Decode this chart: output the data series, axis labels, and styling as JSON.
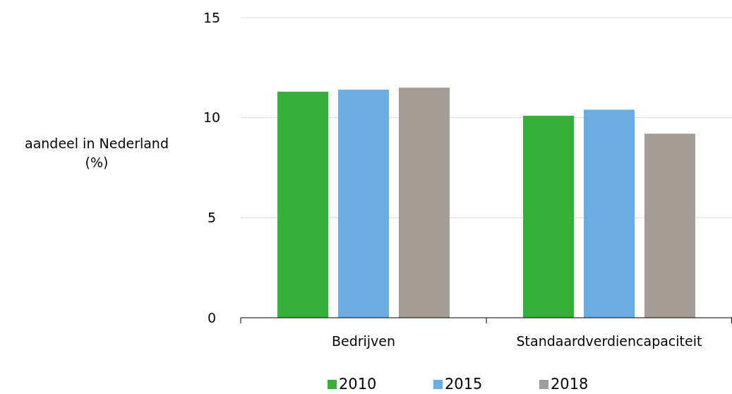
{
  "chart_data": {
    "type": "bar",
    "ylabel": "aandeel in Nederland (%)",
    "categories": [
      "Bedrijven",
      "Standaardverdiencapaciteit"
    ],
    "series": [
      {
        "name": "2010",
        "color": "#36b137",
        "values": [
          11.3,
          10.1
        ]
      },
      {
        "name": "2015",
        "color": "#6aade4",
        "values": [
          11.4,
          10.4
        ]
      },
      {
        "name": "2018",
        "color": "#a59d95",
        "values": [
          11.5,
          9.2
        ]
      }
    ],
    "ylim": [
      0,
      15
    ],
    "yticks": [
      0,
      5,
      10,
      15
    ],
    "grid": "y",
    "legend": "bottom"
  }
}
